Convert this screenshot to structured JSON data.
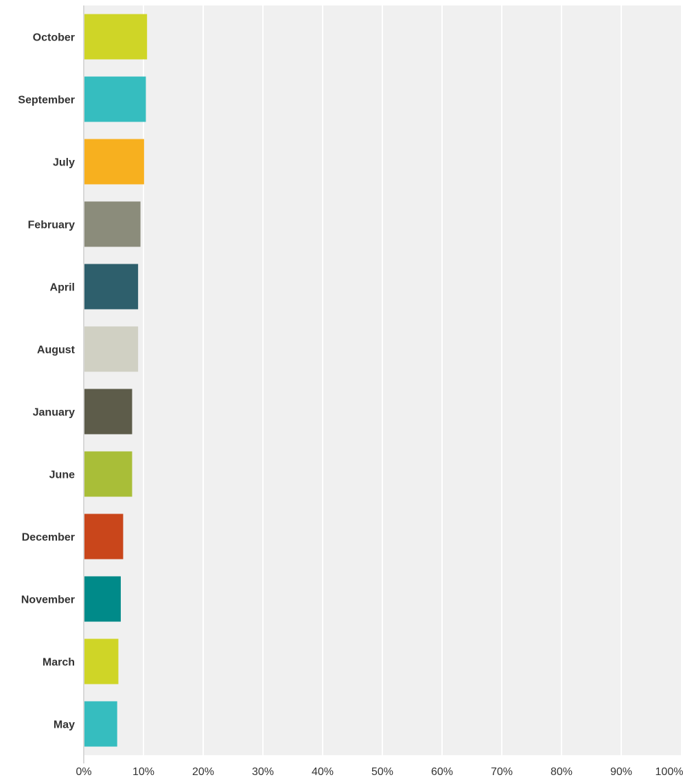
{
  "chart_data": {
    "type": "bar",
    "orientation": "horizontal",
    "categories": [
      "October",
      "September",
      "July",
      "February",
      "April",
      "August",
      "January",
      "June",
      "December",
      "November",
      "March",
      "May"
    ],
    "values": [
      10.6,
      10.4,
      10.1,
      9.5,
      9.1,
      9.1,
      8.1,
      8.1,
      6.6,
      6.2,
      5.8,
      5.6
    ],
    "colors": [
      "#cfd527",
      "#36bdbf",
      "#f7b01f",
      "#8b8c7b",
      "#2e5f6c",
      "#d0d0c3",
      "#5d5c4a",
      "#a9be38",
      "#c9461b",
      "#008a89",
      "#cfd527",
      "#36bdbf"
    ],
    "xlim": [
      0,
      100
    ],
    "x_ticks": [
      "0%",
      "10%",
      "20%",
      "30%",
      "40%",
      "50%",
      "60%",
      "70%",
      "80%",
      "90%",
      "100%"
    ],
    "grid": true,
    "background": "#f0f0f0",
    "gridline_color": "#ffffff"
  }
}
